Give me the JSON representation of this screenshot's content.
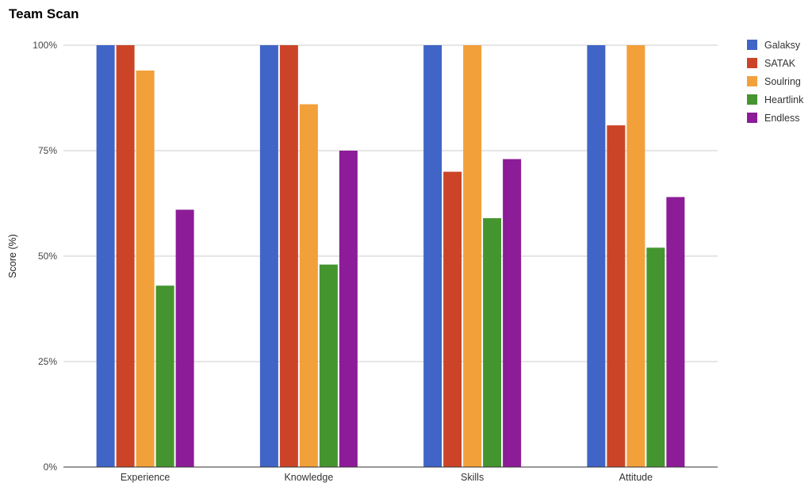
{
  "chart_data": {
    "type": "bar",
    "title": "Team Scan",
    "ylabel": "Score (%)",
    "xlabel": "",
    "ylim": [
      0,
      100
    ],
    "yticks": [
      "0%",
      "25%",
      "50%",
      "75%",
      "100%"
    ],
    "ytick_values": [
      0,
      25,
      50,
      75,
      100
    ],
    "grid": true,
    "legend_position": "right",
    "categories": [
      "Experience",
      "Knowledge",
      "Skills",
      "Attitude"
    ],
    "series": [
      {
        "name": "Galaksy",
        "color": "#4065c7",
        "values": [
          100,
          100,
          100,
          100
        ]
      },
      {
        "name": "SATAK",
        "color": "#cc4427",
        "values": [
          100,
          100,
          70,
          81
        ]
      },
      {
        "name": "Soulring",
        "color": "#f2a03a",
        "values": [
          94,
          86,
          100,
          100
        ]
      },
      {
        "name": "Heartlink",
        "color": "#44952f",
        "values": [
          43,
          48,
          59,
          52
        ]
      },
      {
        "name": "Endless",
        "color": "#8c1c97",
        "values": [
          61,
          75,
          73,
          64
        ]
      }
    ]
  }
}
